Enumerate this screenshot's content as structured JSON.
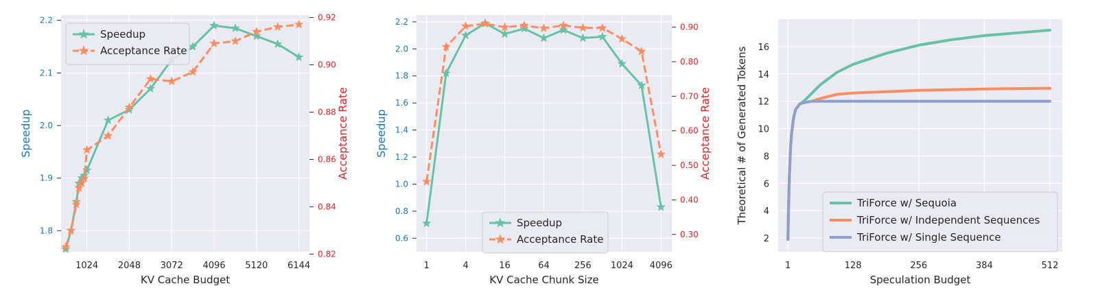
{
  "colors": {
    "green": "#66c2a5",
    "orange": "#fc8d62",
    "purple": "#8da0cb",
    "grid": "#ffffff",
    "panel": "#eaeaf2",
    "left_axis": "#1f77b4",
    "right_axis": "#d62728"
  },
  "chart_data": [
    {
      "type": "line",
      "xlabel": "KV Cache Budget",
      "ylabel": "Speedup",
      "ylabel_right": "Acceptance Rate",
      "xlim": [
        400,
        6400
      ],
      "ylim": [
        1.76,
        2.21
      ],
      "ylim_right": [
        0.821,
        0.921
      ],
      "xticks": [
        1024,
        2048,
        3072,
        4096,
        5120,
        6144
      ],
      "yticks": [
        1.8,
        1.9,
        2.0,
        2.1,
        2.2
      ],
      "yticks_right": [
        0.82,
        0.84,
        0.86,
        0.88,
        0.9,
        0.92
      ],
      "grid": true,
      "legend": "top-left",
      "series": [
        {
          "name": "Speedup",
          "axis": "left",
          "color": "#66c2a5",
          "style": "solid",
          "x": [
            512,
            640,
            768,
            832,
            896,
            960,
            1024,
            1536,
            2048,
            2560,
            3072,
            3584,
            4096,
            4608,
            5120,
            5632,
            6144
          ],
          "values": [
            1.765,
            1.8,
            1.855,
            1.89,
            1.9,
            1.905,
            1.915,
            2.01,
            2.03,
            2.07,
            2.125,
            2.15,
            2.19,
            2.185,
            2.17,
            2.155,
            2.13
          ]
        },
        {
          "name": "Acceptance Rate",
          "axis": "right",
          "color": "#fc8d62",
          "style": "dashed",
          "x": [
            512,
            640,
            768,
            832,
            896,
            960,
            1024,
            1536,
            2048,
            2560,
            3072,
            3584,
            4096,
            4608,
            5120,
            5632,
            6144
          ],
          "values": [
            0.823,
            0.83,
            0.841,
            0.848,
            0.85,
            0.852,
            0.864,
            0.87,
            0.882,
            0.894,
            0.893,
            0.897,
            0.909,
            0.91,
            0.914,
            0.916,
            0.917
          ]
        }
      ]
    },
    {
      "type": "line",
      "xlabel": "KV Cache Chunk Size",
      "ylabel": "Speedup",
      "ylabel_right": "Acceptance Rate",
      "xscale": "log2",
      "xlim": [
        0.7,
        6000
      ],
      "ylim": [
        0.5,
        2.25
      ],
      "ylim_right": [
        0.25,
        0.935
      ],
      "xticks": [
        1,
        4,
        16,
        64,
        256,
        1024,
        4096
      ],
      "yticks": [
        0.6,
        0.8,
        1.0,
        1.2,
        1.4,
        1.6,
        1.8,
        2.0,
        2.2
      ],
      "yticks_right": [
        0.3,
        0.4,
        0.5,
        0.6,
        0.7,
        0.8,
        0.9
      ],
      "grid": true,
      "legend": "bottom-center",
      "series": [
        {
          "name": "Speedup",
          "axis": "left",
          "color": "#66c2a5",
          "style": "solid",
          "x": [
            1,
            2,
            4,
            8,
            16,
            32,
            64,
            128,
            256,
            512,
            1024,
            2048,
            4096
          ],
          "values": [
            0.71,
            1.82,
            2.1,
            2.19,
            2.11,
            2.15,
            2.08,
            2.14,
            2.08,
            2.09,
            1.89,
            1.73,
            0.83
          ]
        },
        {
          "name": "Acceptance Rate",
          "axis": "right",
          "color": "#fc8d62",
          "style": "dashed",
          "x": [
            1,
            2,
            4,
            8,
            16,
            32,
            64,
            128,
            256,
            512,
            1024,
            2048,
            4096
          ],
          "values": [
            0.453,
            0.843,
            0.903,
            0.91,
            0.9,
            0.905,
            0.897,
            0.905,
            0.898,
            0.898,
            0.866,
            0.83,
            0.532
          ]
        }
      ]
    },
    {
      "type": "line",
      "xlabel": "Speculation Budget",
      "ylabel": "Theoretical # of Generated Tokens",
      "xlim": [
        -18,
        536
      ],
      "ylim": [
        1.0,
        18.0
      ],
      "xticks": [
        1,
        128,
        256,
        384,
        512
      ],
      "yticks": [
        2,
        4,
        6,
        8,
        10,
        12,
        14,
        16
      ],
      "grid": true,
      "legend": "bottom-right",
      "series": [
        {
          "name": "TriForce w/ Sequoia",
          "color": "#66c2a5",
          "style": "solid",
          "x": [
            1,
            2,
            3,
            4,
            6,
            8,
            12,
            16,
            24,
            32,
            48,
            64,
            96,
            128,
            192,
            256,
            320,
            384,
            448,
            512
          ],
          "values": [
            1.9,
            3.8,
            5.4,
            6.7,
            8.5,
            9.6,
            10.8,
            11.4,
            11.8,
            12.0,
            12.6,
            13.2,
            14.1,
            14.7,
            15.5,
            16.1,
            16.5,
            16.8,
            17.0,
            17.2
          ]
        },
        {
          "name": "TriForce w/ Independent Sequences",
          "color": "#fc8d62",
          "style": "solid",
          "x": [
            1,
            2,
            3,
            4,
            6,
            8,
            12,
            16,
            24,
            32,
            48,
            64,
            96,
            128,
            192,
            256,
            320,
            384,
            448,
            512
          ],
          "values": [
            1.9,
            3.8,
            5.4,
            6.7,
            8.5,
            9.6,
            10.8,
            11.4,
            11.8,
            11.9,
            12.0,
            12.2,
            12.5,
            12.6,
            12.7,
            12.8,
            12.85,
            12.9,
            12.93,
            12.95
          ]
        },
        {
          "name": "TriForce w/ Single Sequence",
          "color": "#8da0cb",
          "style": "solid",
          "x": [
            1,
            2,
            3,
            4,
            6,
            8,
            12,
            16,
            24,
            32,
            48,
            64,
            96,
            128,
            192,
            256,
            320,
            384,
            448,
            512
          ],
          "values": [
            1.9,
            3.8,
            5.4,
            6.7,
            8.5,
            9.6,
            10.8,
            11.4,
            11.8,
            11.9,
            12.0,
            12.0,
            12.0,
            12.0,
            12.0,
            12.0,
            12.0,
            12.0,
            12.0,
            12.0
          ]
        }
      ]
    }
  ]
}
